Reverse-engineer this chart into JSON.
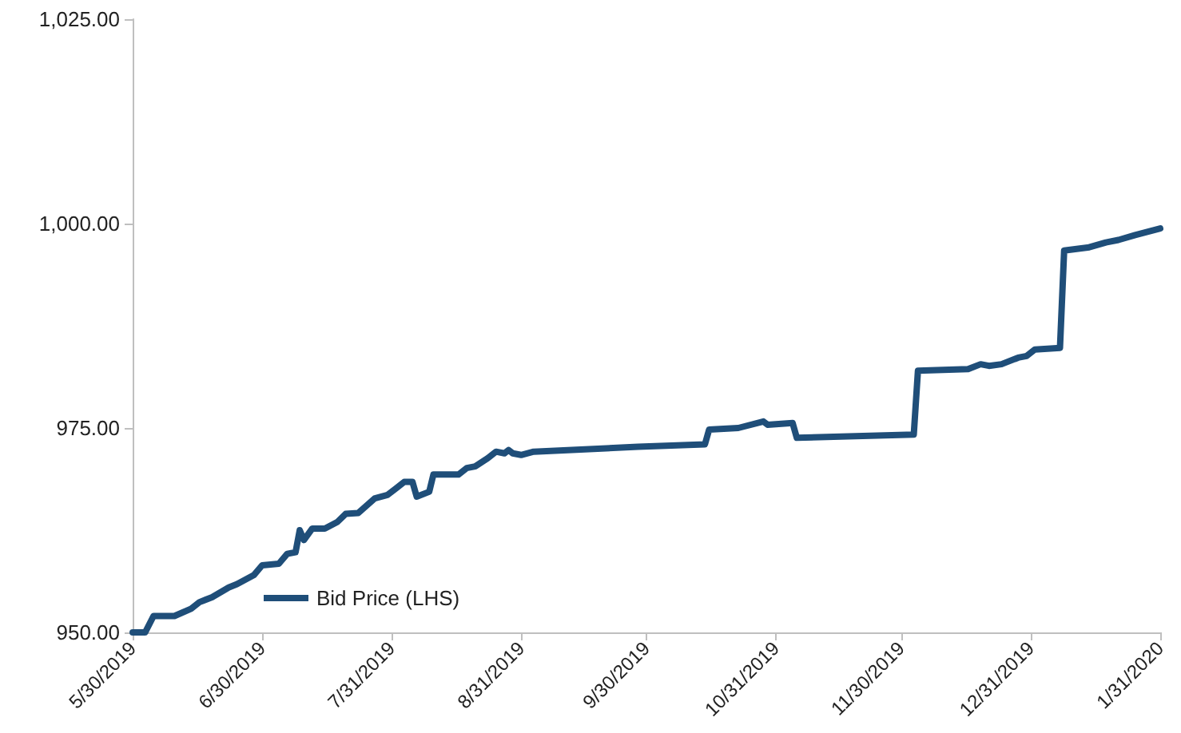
{
  "chart_data": {
    "type": "line",
    "series": [
      {
        "name": "Bid Price (LHS)",
        "color": "#1f4e79",
        "x": [
          "2019-05-30",
          "2019-06-02",
          "2019-06-04",
          "2019-06-09",
          "2019-06-13",
          "2019-06-15",
          "2019-06-18",
          "2019-06-22",
          "2019-06-24",
          "2019-06-28",
          "2019-06-30",
          "2019-07-04",
          "2019-07-06",
          "2019-07-08",
          "2019-07-09",
          "2019-07-10",
          "2019-07-12",
          "2019-07-15",
          "2019-07-18",
          "2019-07-20",
          "2019-07-23",
          "2019-07-27",
          "2019-07-30",
          "2019-08-01",
          "2019-08-03",
          "2019-08-05",
          "2019-08-06",
          "2019-08-09",
          "2019-08-10",
          "2019-08-16",
          "2019-08-18",
          "2019-08-20",
          "2019-08-23",
          "2019-08-25",
          "2019-08-27",
          "2019-08-28",
          "2019-08-29",
          "2019-08-31",
          "2019-09-03",
          "2019-09-28",
          "2019-10-14",
          "2019-10-15",
          "2019-10-22",
          "2019-10-28",
          "2019-10-29",
          "2019-11-04",
          "2019-11-05",
          "2019-12-03",
          "2019-12-04",
          "2019-12-16",
          "2019-12-19",
          "2019-12-21",
          "2019-12-24",
          "2019-12-28",
          "2019-12-30",
          "2020-01-01",
          "2020-01-07",
          "2020-01-08",
          "2020-01-14",
          "2020-01-18",
          "2020-01-21",
          "2020-01-25",
          "2020-01-31"
        ],
        "values": [
          950.0,
          950.0,
          952.0,
          952.0,
          952.9,
          953.7,
          954.3,
          955.5,
          955.9,
          957.0,
          958.2,
          958.4,
          959.6,
          959.8,
          962.5,
          961.3,
          962.7,
          962.7,
          963.5,
          964.5,
          964.6,
          966.4,
          966.8,
          967.6,
          968.4,
          968.4,
          966.6,
          967.2,
          969.3,
          969.3,
          970.1,
          970.3,
          971.3,
          972.1,
          971.9,
          972.3,
          971.9,
          971.7,
          972.1,
          972.7,
          973.0,
          974.8,
          975.0,
          975.8,
          975.4,
          975.6,
          973.8,
          974.2,
          982.0,
          982.2,
          982.8,
          982.6,
          982.8,
          983.6,
          983.8,
          984.6,
          984.8,
          996.7,
          997.1,
          997.7,
          998.0,
          998.6,
          999.4
        ]
      }
    ],
    "xlim": [
      "2019-05-30",
      "2020-01-31"
    ],
    "xticks": [
      {
        "value": "2019-05-30",
        "label": "5/30/2019"
      },
      {
        "value": "2019-06-30",
        "label": "6/30/2019"
      },
      {
        "value": "2019-07-31",
        "label": "7/31/2019"
      },
      {
        "value": "2019-08-31",
        "label": "8/31/2019"
      },
      {
        "value": "2019-09-30",
        "label": "9/30/2019"
      },
      {
        "value": "2019-10-31",
        "label": "10/31/2019"
      },
      {
        "value": "2019-11-30",
        "label": "11/30/2019"
      },
      {
        "value": "2019-12-31",
        "label": "12/31/2019"
      },
      {
        "value": "2020-01-31",
        "label": "1/31/2020"
      }
    ],
    "ylim": [
      950,
      1025
    ],
    "yticks": [
      {
        "value": 950,
        "label": "950.00"
      },
      {
        "value": 975,
        "label": "975.00"
      },
      {
        "value": 1000,
        "label": "1,000.00"
      },
      {
        "value": 1025,
        "label": "1,025.00"
      }
    ],
    "grid": false,
    "legend": "bottom left",
    "marker": "none",
    "line_style": "solid"
  }
}
